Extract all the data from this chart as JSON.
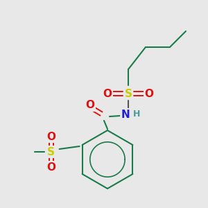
{
  "bg_color": "#e8e8e8",
  "atom_colors": {
    "C": "#1a7a4a",
    "H": "#4a9a9a",
    "N": "#2020cc",
    "O": "#dd1111",
    "S": "#cccc00"
  },
  "bond_color": "#1a7a4a",
  "figsize": [
    3.0,
    3.0
  ],
  "dpi": 100
}
